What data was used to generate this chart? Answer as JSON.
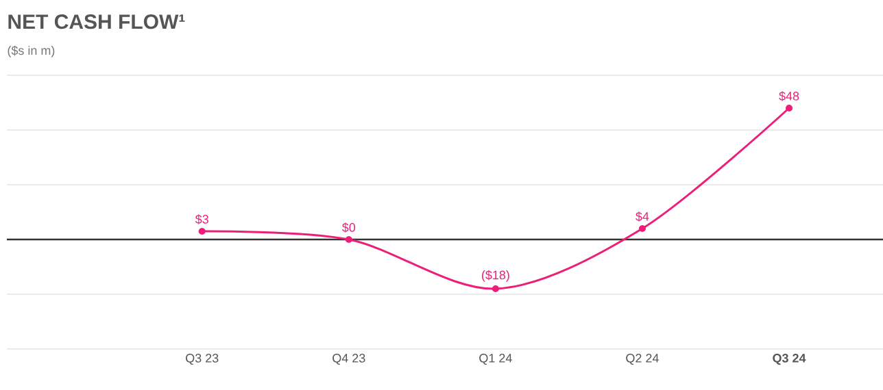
{
  "chart_data": {
    "type": "line",
    "title": "NET CASH FLOW¹",
    "subtitle": "($s in m)",
    "categories": [
      "Q3 23",
      "Q4 23",
      "Q1 24",
      "Q2 24",
      "**Q3 24**"
    ],
    "series": [
      {
        "color": "#ec1e79",
        "values": [
          3,
          0,
          -18,
          4,
          48
        ],
        "value_labels": [
          "$3",
          "$0",
          "($18)",
          "$4",
          "$48"
        ]
      }
    ],
    "ylim": [
      -40,
      60
    ],
    "yticks": [
      {
        "value": -40,
        "label": null
      },
      {
        "value": -20,
        "label": null
      },
      {
        "value": 0,
        "label": null
      },
      {
        "value": 20,
        "label": null
      },
      {
        "value": 40,
        "label": null
      },
      {
        "value": 60,
        "label": null
      }
    ],
    "tick_labels": "x",
    "grid": "y",
    "marker": "circle",
    "line_style": "solid",
    "ref_lines": [
      {
        "axis": "y",
        "value": 0,
        "color": "#333333"
      }
    ]
  }
}
